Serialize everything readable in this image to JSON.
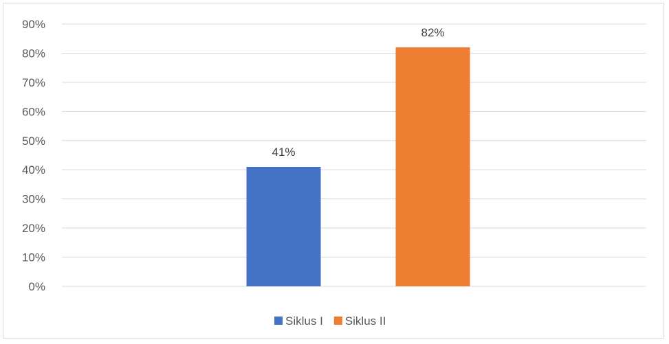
{
  "chart_data": {
    "type": "bar",
    "categories": [
      ""
    ],
    "series": [
      {
        "name": "Siklus I",
        "values": [
          41
        ],
        "label": "41%",
        "color": "#4472C4"
      },
      {
        "name": "Siklus II",
        "values": [
          82
        ],
        "label": "82%",
        "color": "#ED7D31"
      }
    ],
    "ylim": [
      0,
      90
    ],
    "yticks": [
      "0%",
      "10%",
      "20%",
      "30%",
      "40%",
      "50%",
      "60%",
      "70%",
      "80%",
      "90%"
    ],
    "grid": true,
    "legend": "bottom",
    "title": "",
    "xlabel": "",
    "ylabel": ""
  }
}
